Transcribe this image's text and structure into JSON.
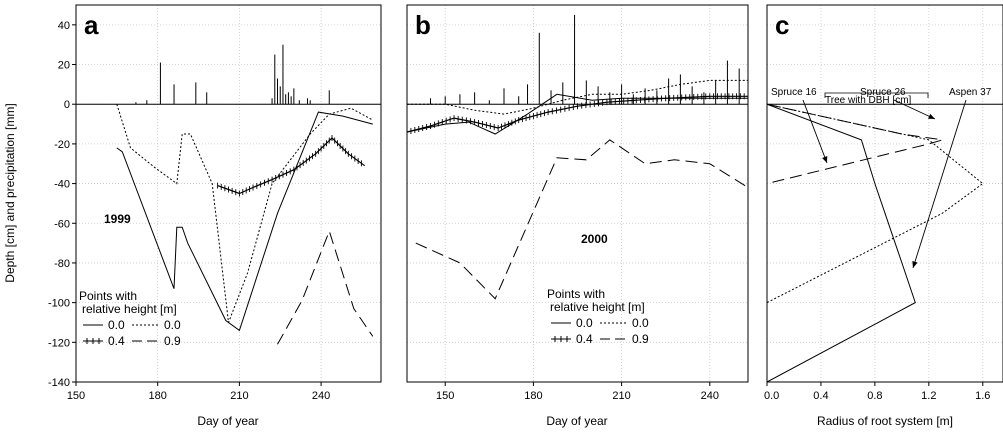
{
  "chart_data": [
    {
      "panel": "a",
      "type": "line",
      "ylabel": "Depth [cm] and precipitation [mm]",
      "xlabel": "Day of year",
      "xlim": [
        150,
        262
      ],
      "ylim": [
        -140,
        50
      ],
      "xticks": [
        150,
        180,
        210,
        240
      ],
      "yticks": [
        -140,
        -120,
        -100,
        -80,
        -60,
        -40,
        -20,
        0,
        20,
        40
      ],
      "grid": true,
      "year_label": "1999",
      "legend_title": "Points with relative height [m]",
      "legend_placement": "bottom-left",
      "legend_entries": [
        "0.0",
        "0.0",
        "0.4",
        "0.9"
      ],
      "series": [
        {
          "legend": "0.0",
          "style": "solid",
          "x": [
            165,
            167,
            186,
            187,
            189,
            191,
            205,
            210,
            224,
            239,
            248,
            259
          ],
          "y": [
            -22,
            -24,
            -93,
            -62,
            -62,
            -70,
            -109,
            -114,
            -55,
            -4,
            -6,
            -10
          ]
        },
        {
          "legend": "0.0",
          "style": "dotted",
          "x": [
            165,
            170,
            179,
            185,
            187,
            189,
            192,
            200,
            206,
            213,
            222,
            236,
            243,
            251,
            259
          ],
          "y": [
            0,
            -22,
            -32,
            -38,
            -40,
            -15,
            -15,
            -40,
            -110,
            -85,
            -40,
            -15,
            -5,
            -2,
            -8
          ]
        },
        {
          "legend": "0.4",
          "style": "plus-marked",
          "x": [
            202,
            206,
            210,
            215,
            222,
            230,
            238,
            244,
            250,
            256
          ],
          "y": [
            -41,
            -43,
            -45,
            -42,
            -38,
            -33,
            -25,
            -17,
            -25,
            -31
          ]
        },
        {
          "legend": "0.9",
          "style": "dashed",
          "x": [
            224,
            233,
            243,
            252,
            259
          ],
          "y": [
            -121,
            -99,
            -64,
            -103,
            -117
          ]
        },
        {
          "name": "precipitation",
          "style": "bars",
          "x": [
            172,
            176,
            181,
            186,
            194,
            198,
            222,
            223,
            224,
            225,
            226,
            227,
            228,
            229,
            230,
            232,
            235,
            236,
            243
          ],
          "y": [
            1,
            2,
            21,
            10,
            11,
            6,
            3,
            25,
            13,
            9,
            30,
            5,
            6,
            4,
            8,
            2,
            3,
            2,
            7
          ]
        }
      ]
    },
    {
      "panel": "b",
      "type": "line",
      "xlabel": "Day of year",
      "xlim": [
        137,
        253
      ],
      "ylim": [
        -140,
        50
      ],
      "xticks": [
        150,
        180,
        210,
        240
      ],
      "grid": true,
      "year_label": "2000",
      "legend_title": "Points with relative height [m]",
      "legend_placement": "bottom-center",
      "legend_entries": [
        "0.0",
        "0.0",
        "0.4",
        "0.9"
      ],
      "series": [
        {
          "legend": "0.0",
          "style": "solid",
          "x": [
            137,
            150,
            158,
            167,
            178,
            188,
            200,
            210,
            225,
            240,
            253
          ],
          "y": [
            -14,
            -10,
            -9,
            -15,
            -5,
            5,
            2,
            3,
            3,
            3,
            3
          ]
        },
        {
          "legend": "0.0",
          "style": "dotted",
          "x": [
            137,
            150,
            160,
            170,
            180,
            190,
            200,
            210,
            220,
            230,
            240,
            253
          ],
          "y": [
            0,
            0,
            -3,
            -5,
            -2,
            2,
            5,
            5,
            7,
            10,
            12,
            12
          ]
        },
        {
          "legend": "0.4",
          "style": "plus-marked",
          "x": [
            137,
            145,
            153,
            160,
            168,
            175,
            185,
            195,
            205,
            215,
            225,
            240,
            253
          ],
          "y": [
            -14,
            -11,
            -7,
            -9,
            -12,
            -8,
            -4,
            -1,
            1,
            2,
            3,
            4,
            4
          ]
        },
        {
          "legend": "0.9",
          "style": "dashed",
          "x": [
            140,
            155,
            167,
            188,
            198,
            206,
            218,
            228,
            240,
            253
          ],
          "y": [
            -70,
            -80,
            -98,
            -27,
            -28,
            -18,
            -30,
            -28,
            -30,
            -42
          ]
        },
        {
          "name": "precipitation",
          "style": "bars",
          "x": [
            145,
            150,
            155,
            160,
            165,
            170,
            175,
            178,
            182,
            186,
            190,
            194,
            198,
            202,
            206,
            210,
            214,
            218,
            222,
            226,
            230,
            234,
            238,
            242,
            246,
            250
          ],
          "y": [
            3,
            4,
            5,
            6,
            2,
            8,
            4,
            10,
            36,
            7,
            11,
            45,
            12,
            9,
            6,
            10,
            5,
            8,
            7,
            13,
            15,
            9,
            6,
            12,
            22,
            18
          ]
        }
      ]
    },
    {
      "panel": "c",
      "type": "line",
      "xlabel": "Radius of root system [m]",
      "xlim": [
        0,
        1.75
      ],
      "ylim": [
        -140,
        50
      ],
      "xticks": [
        0.0,
        0.4,
        0.8,
        1.2,
        1.6
      ],
      "grid": true,
      "annotation_title": "Tree with DBH [cm]",
      "annotations": [
        "Spruce 16",
        "Spruce 26",
        "Aspen 37"
      ],
      "series": [
        {
          "legend": "Spruce 16",
          "style": "dashed",
          "x": [
            0,
            1.0,
            1.3,
            1.2,
            0
          ],
          "y": [
            0,
            -15,
            -18,
            -20,
            -40
          ]
        },
        {
          "legend": "Spruce 26",
          "style": "dotted",
          "x": [
            0,
            1.2,
            1.6,
            1.3,
            0
          ],
          "y": [
            0,
            -18,
            -40,
            -55,
            -100
          ]
        },
        {
          "legend": "Aspen 37",
          "style": "solid",
          "x": [
            0,
            0.7,
            0.8,
            1.0,
            1.1,
            0
          ],
          "y": [
            0,
            -18,
            -40,
            -80,
            -100,
            -140
          ]
        }
      ]
    }
  ]
}
